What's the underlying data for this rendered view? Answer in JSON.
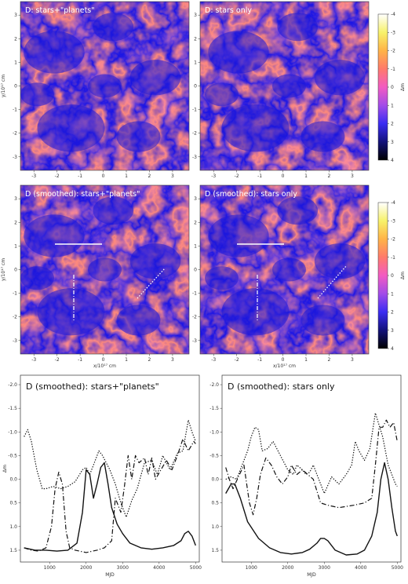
{
  "maps": {
    "colorbar_label": "Δm",
    "colorbar_ticks": [
      "-4",
      "-3",
      "-2",
      "-1",
      "0",
      "1",
      "2",
      "3",
      "4"
    ],
    "colormap": [
      "#ffffff",
      "#f7f26a",
      "#ffb347",
      "#ff7a6b",
      "#f25cc2",
      "#a24ce8",
      "#3a2cf2",
      "#13127a",
      "#000000"
    ],
    "x_ticks": [
      "-3",
      "-2",
      "-1",
      "0",
      "1",
      "2",
      "3"
    ],
    "y_ticks": [
      "3",
      "2",
      "1",
      "0",
      "-1",
      "-2",
      "-3"
    ],
    "xlabel": "x/10¹⁷ cm",
    "ylabel": "y/10¹⁷ cm",
    "panels": [
      {
        "title": "D: stars+\"planets\""
      },
      {
        "title": "D: stars only"
      },
      {
        "title": "D (smoothed): stars+\"planets\""
      },
      {
        "title": "D (smoothed): stars only"
      }
    ]
  },
  "chart_data": [
    {
      "type": "line",
      "title": "D (smoothed): stars+\"planets\"",
      "xlabel": "MJD",
      "ylabel": "Δm",
      "xlim": [
        200,
        5100
      ],
      "ylim": [
        1.75,
        -2.2
      ],
      "y_inverted": true,
      "x_ticks": [
        1000,
        2000,
        3000,
        4000,
        5000
      ],
      "y_ticks": [
        -2.0,
        -1.5,
        -1.0,
        -0.5,
        0.0,
        0.5,
        1.0,
        1.5
      ],
      "y_tick_labels": [
        "-2.0",
        "-1.5",
        "-1.0",
        "-0.5",
        "0.0",
        "0.5",
        "1.0",
        "1.5"
      ],
      "series": [
        {
          "style": "solid",
          "x": [
            300,
            600,
            900,
            1200,
            1500,
            1750,
            1900,
            2000,
            2100,
            2200,
            2300,
            2400,
            2500,
            2600,
            2700,
            2850,
            3000,
            3200,
            3500,
            3800,
            4100,
            4400,
            4600,
            4700,
            4800,
            4900,
            5000
          ],
          "y": [
            1.45,
            1.5,
            1.5,
            1.52,
            1.5,
            1.35,
            0.7,
            -0.2,
            -0.1,
            0.4,
            0.1,
            -0.25,
            -0.35,
            0.1,
            0.6,
            0.95,
            1.15,
            1.35,
            1.45,
            1.48,
            1.45,
            1.4,
            1.3,
            1.15,
            1.1,
            1.2,
            1.4
          ]
        },
        {
          "style": "dashdot",
          "x": [
            300,
            500,
            700,
            900,
            1050,
            1150,
            1250,
            1350,
            1450,
            1550,
            1700,
            2000,
            2300,
            2500,
            2700,
            2800,
            2950,
            3050,
            3150,
            3250,
            3350,
            3450,
            3600,
            3700,
            3800,
            3900,
            4050,
            4200,
            4350,
            4500,
            4650,
            4800,
            4950,
            5000
          ],
          "y": [
            1.45,
            1.5,
            1.52,
            1.45,
            1.0,
            0.2,
            -0.15,
            0.1,
            1.1,
            1.45,
            1.5,
            1.55,
            1.5,
            1.45,
            1.3,
            0.4,
            0.7,
            0.15,
            -0.5,
            0.0,
            -0.5,
            -0.35,
            -0.45,
            -0.1,
            -0.45,
            0.0,
            -0.2,
            -0.4,
            -0.2,
            -0.5,
            -0.85,
            -0.6,
            -0.8,
            -0.75
          ]
        },
        {
          "style": "dotted",
          "x": [
            300,
            400,
            500,
            650,
            800,
            900,
            1100,
            1300,
            1500,
            1700,
            1900,
            2000,
            2100,
            2200,
            2350,
            2450,
            2550,
            2650,
            2800,
            2950,
            3100,
            3250,
            3400,
            3600,
            3800,
            3950,
            4100,
            4300,
            4500,
            4650,
            4800,
            4900,
            5000
          ],
          "y": [
            -0.9,
            -1.05,
            -0.8,
            -0.2,
            0.2,
            0.2,
            0.15,
            0.2,
            0.15,
            0.05,
            -0.2,
            -0.25,
            -0.1,
            -0.3,
            -0.6,
            -0.5,
            -0.35,
            -0.2,
            0.1,
            0.5,
            0.8,
            0.45,
            0.2,
            -0.35,
            -0.4,
            -0.1,
            -0.5,
            -0.2,
            -0.55,
            -0.6,
            -1.25,
            -1.0,
            -0.8
          ]
        }
      ]
    },
    {
      "type": "line",
      "title": "D (smoothed): stars only",
      "xlabel": "MJD",
      "ylabel": "",
      "xlim": [
        200,
        5100
      ],
      "ylim": [
        1.75,
        -2.2
      ],
      "y_inverted": true,
      "x_ticks": [
        1000,
        2000,
        3000,
        4000,
        5000
      ],
      "y_ticks": [
        -2.0,
        -1.5,
        -1.0,
        -0.5,
        0.0,
        0.5,
        1.0,
        1.5
      ],
      "y_tick_labels": [
        "-2.0",
        "-1.5",
        "-1.0",
        "-0.5",
        "0.0",
        "0.5",
        "1.0",
        "1.5"
      ],
      "series": [
        {
          "style": "solid",
          "x": [
            300,
            450,
            550,
            700,
            900,
            1200,
            1500,
            1800,
            2100,
            2400,
            2600,
            2800,
            2900,
            3000,
            3100,
            3300,
            3600,
            3900,
            4100,
            4300,
            4450,
            4550,
            4650,
            4750,
            4850,
            4950,
            5000
          ],
          "y": [
            0.3,
            0.1,
            0.1,
            0.4,
            0.9,
            1.25,
            1.45,
            1.55,
            1.58,
            1.55,
            1.48,
            1.35,
            1.25,
            1.25,
            1.3,
            1.5,
            1.6,
            1.58,
            1.5,
            1.2,
            0.7,
            0.0,
            -0.35,
            0.0,
            0.6,
            1.1,
            1.2
          ]
        },
        {
          "style": "dashdot",
          "x": [
            300,
            400,
            500,
            650,
            800,
            950,
            1050,
            1150,
            1250,
            1400,
            1550,
            1700,
            1850,
            2000,
            2100,
            2250,
            2400,
            2550,
            2700,
            2900,
            3100,
            3400,
            3800,
            4100,
            4300,
            4400,
            4500,
            4600,
            4700,
            4800,
            4900,
            5000
          ],
          "y": [
            -0.25,
            0.0,
            0.2,
            -0.05,
            -0.3,
            0.5,
            0.75,
            0.4,
            -0.1,
            -0.45,
            -0.3,
            -0.05,
            0.1,
            -0.05,
            -0.3,
            -0.1,
            -0.2,
            -0.1,
            0.0,
            0.5,
            0.55,
            0.6,
            0.55,
            0.5,
            0.4,
            -0.3,
            -1.1,
            -1.1,
            -1.25,
            -1.1,
            -1.2,
            -0.8
          ]
        },
        {
          "style": "dotted",
          "x": [
            300,
            450,
            600,
            750,
            900,
            1000,
            1100,
            1200,
            1300,
            1450,
            1600,
            1800,
            2000,
            2150,
            2250,
            2400,
            2500,
            2600,
            2700,
            2850,
            3000,
            3200,
            3400,
            3600,
            3750,
            3850,
            3950,
            4100,
            4250,
            4400,
            4600,
            4750,
            4850,
            4950,
            5000
          ],
          "y": [
            0.0,
            -0.05,
            0.0,
            -0.3,
            -0.6,
            -0.9,
            -1.1,
            -1.05,
            -0.6,
            -0.65,
            -0.8,
            -0.5,
            -0.2,
            -0.1,
            -0.3,
            -0.2,
            -0.1,
            -0.15,
            -0.3,
            0.0,
            0.3,
            -0.05,
            0.1,
            -0.1,
            -0.3,
            -0.8,
            -0.6,
            -0.4,
            -0.65,
            -1.4,
            -0.9,
            -0.3,
            -0.1,
            0.1,
            0.15
          ]
        }
      ]
    }
  ]
}
